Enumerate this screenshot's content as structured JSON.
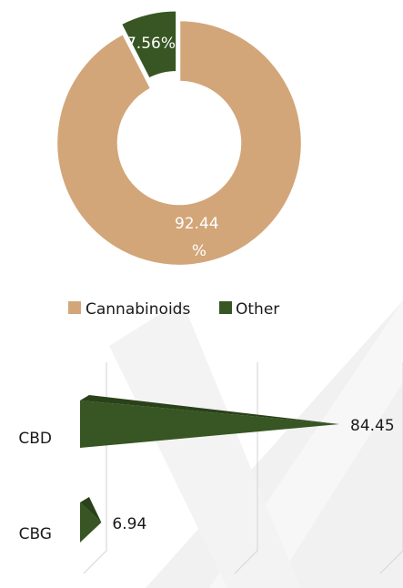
{
  "colors": {
    "cannabinoids": "#d2a679",
    "other": "#375623",
    "other_dark": "#2a4219",
    "grid": "#d9d9d9",
    "watermark": "#f0f0f0"
  },
  "chart_data": [
    {
      "type": "pie",
      "donut": true,
      "categories": [
        "Cannabinoids",
        "Other"
      ],
      "values": [
        92.44,
        7.56
      ],
      "data_labels": [
        "92.44\n%",
        "7.56%"
      ],
      "legend": {
        "placement": "bottom",
        "entries": [
          "Cannabinoids",
          "Other"
        ]
      }
    },
    {
      "type": "bar",
      "orientation": "horizontal",
      "style": "cone",
      "categories": [
        "CBD",
        "CBG"
      ],
      "values": [
        84.45,
        6.94
      ],
      "data_labels": [
        "84.45",
        "6.94"
      ],
      "xlim": [
        0,
        100
      ],
      "grid": true,
      "legend": null
    }
  ]
}
